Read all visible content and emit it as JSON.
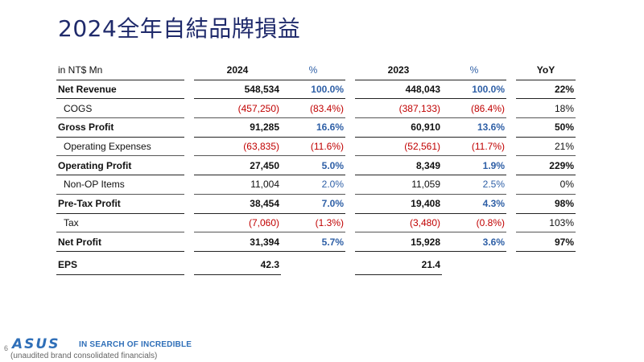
{
  "slide": {
    "title": "2024全年自結品牌損益",
    "page_number": "6",
    "logo_text": "ASUS",
    "tagline": "IN SEARCH OF INCREDIBLE",
    "footnote": "(unaudited brand consolidated financials)"
  },
  "table": {
    "headers": {
      "label": "in NT$ Mn",
      "y2024": "2024",
      "pct1": "%",
      "y2023": "2023",
      "pct2": "%",
      "yoy": "YoY"
    },
    "rows": [
      {
        "label": "Net Revenue",
        "v2024": "548,534",
        "p2024": "100.0%",
        "v2023": "448,043",
        "p2023": "100.0%",
        "yoy": "22%"
      },
      {
        "label": "COGS",
        "v2024": "(457,250)",
        "p2024": "(83.4%)",
        "v2023": "(387,133)",
        "p2023": "(86.4%)",
        "yoy": "18%"
      },
      {
        "label": "Gross Profit",
        "v2024": "91,285",
        "p2024": "16.6%",
        "v2023": "60,910",
        "p2023": "13.6%",
        "yoy": "50%"
      },
      {
        "label": "Operating Expenses",
        "v2024": "(63,835)",
        "p2024": "(11.6%)",
        "v2023": "(52,561)",
        "p2023": "(11.7%)",
        "yoy": "21%"
      },
      {
        "label": "Operating Profit",
        "v2024": "27,450",
        "p2024": "5.0%",
        "v2023": "8,349",
        "p2023": "1.9%",
        "yoy": "229%"
      },
      {
        "label": "Non-OP Items",
        "v2024": "11,004",
        "p2024": "2.0%",
        "v2023": "11,059",
        "p2023": "2.5%",
        "yoy": "0%"
      },
      {
        "label": "Pre-Tax Profit",
        "v2024": "38,454",
        "p2024": "7.0%",
        "v2023": "19,408",
        "p2023": "4.3%",
        "yoy": "98%"
      },
      {
        "label": "Tax",
        "v2024": "(7,060)",
        "p2024": "(1.3%)",
        "v2023": "(3,480)",
        "p2023": "(0.8%)",
        "yoy": "103%"
      },
      {
        "label": "Net Profit",
        "v2024": "31,394",
        "p2024": "5.7%",
        "v2023": "15,928",
        "p2023": "3.6%",
        "yoy": "97%"
      }
    ],
    "eps": {
      "label": "EPS",
      "v2024": "42.3",
      "v2023": "21.4"
    }
  },
  "colors": {
    "title": "#1f2a6b",
    "percent_blue": "#2e5fa6",
    "negative_red": "#c00000",
    "brand_blue": "#2f6fb8"
  }
}
